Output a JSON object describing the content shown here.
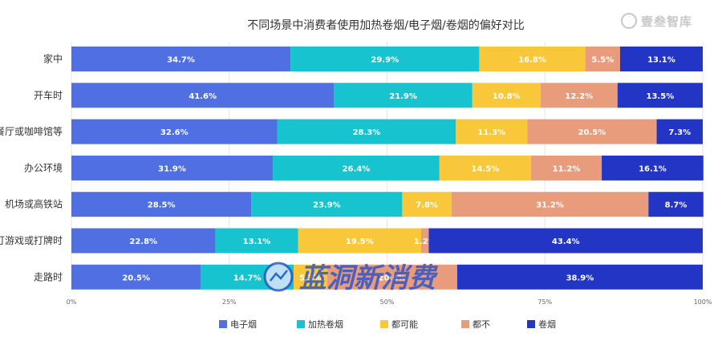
{
  "brand": {
    "name": "壹叁智库"
  },
  "watermark": {
    "text": "蓝洞新消费"
  },
  "chart_data": {
    "type": "bar",
    "orientation": "horizontal",
    "stacked": "percent",
    "title": "不同场景中消费者使用加热卷烟/电子烟/卷烟的偏好对比",
    "xlabel": "",
    "ylabel": "",
    "xlim": [
      0,
      100
    ],
    "x_ticks": [
      "0%",
      "25%",
      "50%",
      "75%",
      "100%"
    ],
    "grid": "vertical",
    "legend_position": "bottom",
    "categories": [
      "家中",
      "开车时",
      "餐厅或咖啡馆等",
      "办公环境",
      "机场或高铁站",
      "打游戏或打牌时",
      "走路时"
    ],
    "series": [
      {
        "name": "电子烟",
        "color": "#4f6fe3",
        "values": [
          34.7,
          41.6,
          32.6,
          31.9,
          28.5,
          22.8,
          20.5
        ]
      },
      {
        "name": "加热卷烟",
        "color": "#17c3cf",
        "values": [
          29.9,
          21.9,
          28.3,
          26.4,
          23.9,
          13.1,
          14.7
        ]
      },
      {
        "name": "都可能",
        "color": "#f9c83a",
        "values": [
          16.8,
          10.8,
          11.3,
          14.5,
          7.8,
          19.5,
          5.3
        ]
      },
      {
        "name": "都不",
        "color": "#e99c7c",
        "values": [
          5.5,
          12.2,
          20.5,
          11.2,
          31.2,
          1.2,
          20.6
        ]
      },
      {
        "name": "卷烟",
        "color": "#2335c4",
        "values": [
          13.1,
          13.5,
          7.3,
          16.1,
          8.7,
          43.4,
          38.9
        ]
      }
    ]
  }
}
